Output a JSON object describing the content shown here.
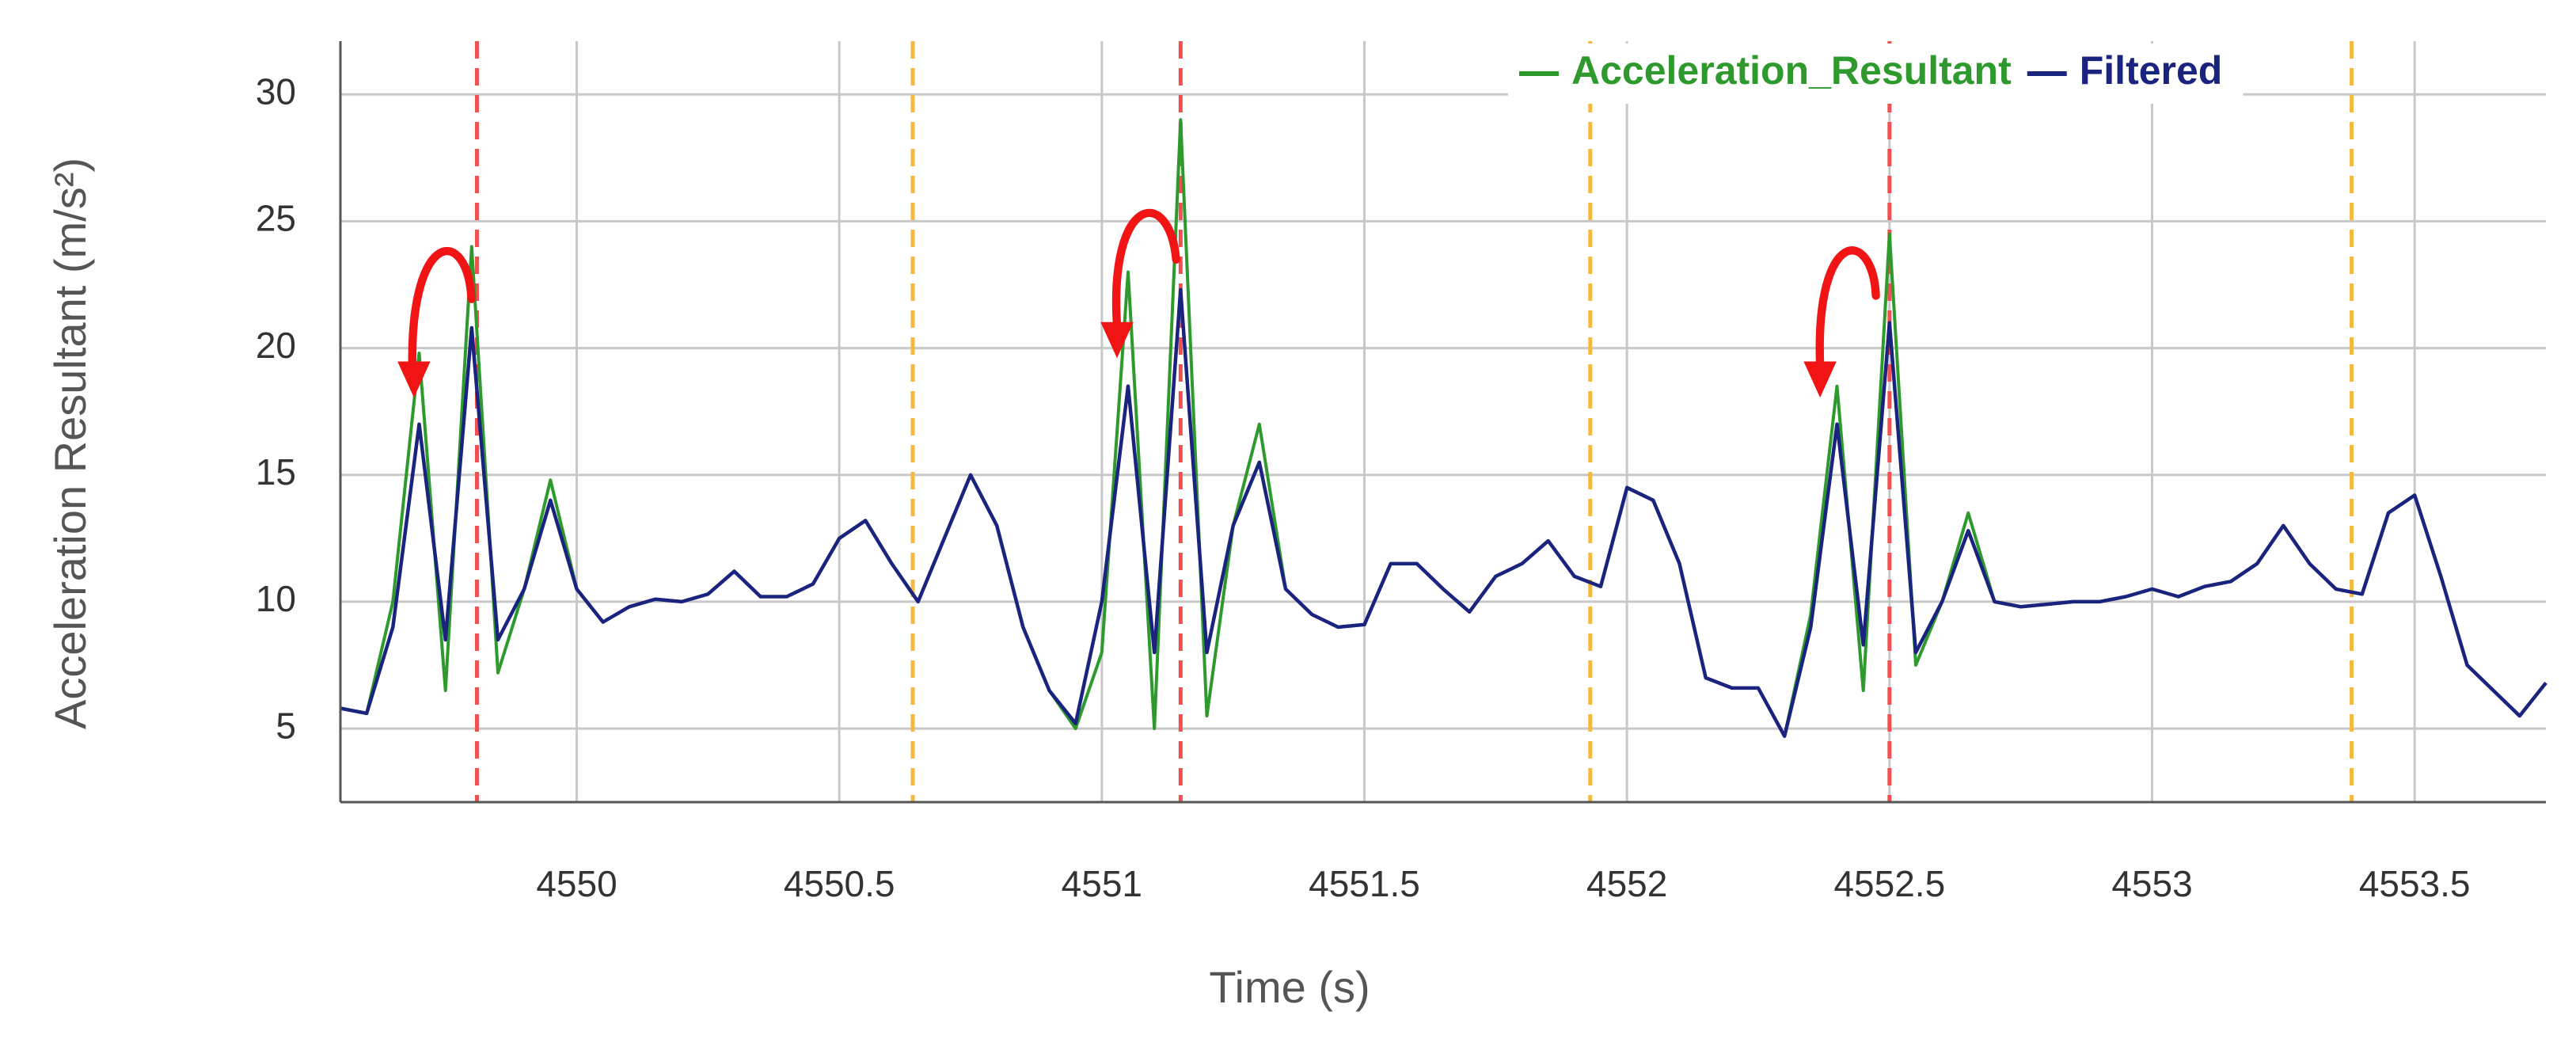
{
  "chart_data": {
    "type": "line",
    "x_label": "Time (s)",
    "y_label": "Acceleration Resultant (m/s²)",
    "x": [
      4549.55,
      4549.6,
      4549.65,
      4549.7,
      4549.75,
      4549.8,
      4549.85,
      4549.9,
      4549.95,
      4550,
      4550.05,
      4550.1,
      4550.15,
      4550.2,
      4550.25,
      4550.3,
      4550.35,
      4550.4,
      4550.45,
      4550.5,
      4550.55,
      4550.6,
      4550.65,
      4550.7,
      4550.75,
      4550.8,
      4550.85,
      4550.9,
      4550.95,
      4551,
      4551.05,
      4551.1,
      4551.15,
      4551.2,
      4551.25,
      4551.3,
      4551.35,
      4551.4,
      4551.45,
      4551.5,
      4551.55,
      4551.6,
      4551.65,
      4551.7,
      4551.75,
      4551.8,
      4551.85,
      4551.9,
      4551.95,
      4552,
      4552.05,
      4552.1,
      4552.15,
      4552.2,
      4552.25,
      4552.3,
      4552.35,
      4552.4,
      4552.45,
      4552.5,
      4552.55,
      4552.6,
      4552.65,
      4552.7,
      4552.75,
      4552.8,
      4552.85,
      4552.9,
      4552.95,
      4553,
      4553.05,
      4553.1,
      4553.15,
      4553.2,
      4553.25,
      4553.3,
      4553.35,
      4553.4,
      4553.45,
      4553.5,
      4553.55,
      4553.6,
      4553.65,
      4553.7,
      4553.75
    ],
    "series": [
      {
        "name": "Acceleration_Resultant",
        "color": "#2e9a2e",
        "values": [
          5.8,
          5.6,
          10,
          19.8,
          6.5,
          24,
          7.2,
          10.5,
          14.8,
          10.5,
          9.2,
          9.8,
          10.1,
          10,
          10.3,
          11.2,
          10.2,
          10.2,
          10.7,
          12.5,
          13.2,
          11.5,
          10,
          12.5,
          15,
          13,
          9,
          6.5,
          5,
          8,
          23,
          5,
          29,
          5.5,
          13,
          17,
          10.5,
          9.5,
          9,
          9.1,
          11.5,
          11.5,
          10.5,
          9.6,
          11,
          11.5,
          12.4,
          11,
          10.6,
          14.5,
          14,
          11.5,
          7,
          6.6,
          6.6,
          4.7,
          9.5,
          18.5,
          6.5,
          24.5,
          7.5,
          10,
          13.5,
          10,
          9.8,
          9.9,
          10,
          10,
          10.2,
          10.5,
          10.2,
          10.6,
          10.8,
          11.5,
          13,
          11.5,
          10.5,
          10.3,
          13.5,
          14.2,
          11,
          7.5,
          6.5,
          5.5,
          6.8
        ]
      },
      {
        "name": "Filtered",
        "color": "#1a237e",
        "values": [
          5.8,
          5.6,
          9,
          17,
          8.5,
          20.8,
          8.5,
          10.5,
          14,
          10.5,
          9.2,
          9.8,
          10.1,
          10,
          10.3,
          11.2,
          10.2,
          10.2,
          10.7,
          12.5,
          13.2,
          11.5,
          10,
          12.5,
          15,
          13,
          9,
          6.5,
          5.2,
          10,
          18.5,
          8,
          22.3,
          8,
          13,
          15.5,
          10.5,
          9.5,
          9,
          9.1,
          11.5,
          11.5,
          10.5,
          9.6,
          11,
          11.5,
          12.4,
          11,
          10.6,
          14.5,
          14,
          11.5,
          7,
          6.6,
          6.6,
          4.7,
          9,
          17,
          8.3,
          21,
          8,
          10,
          12.8,
          10,
          9.8,
          9.9,
          10,
          10,
          10.2,
          10.5,
          10.2,
          10.6,
          10.8,
          11.5,
          13,
          11.5,
          10.5,
          10.3,
          13.5,
          14.2,
          11,
          7.5,
          6.5,
          5.5,
          6.8
        ]
      }
    ],
    "reference_lines": [
      {
        "x": 4549.81,
        "color": "#f05050"
      },
      {
        "x": 4551.15,
        "color": "#f05050"
      },
      {
        "x": 4552.5,
        "color": "#f05050"
      },
      {
        "x": 4550.64,
        "color": "#f5b942"
      },
      {
        "x": 4551.93,
        "color": "#f5b942"
      },
      {
        "x": 4553.38,
        "color": "#f5b942"
      }
    ],
    "xlim": [
      4549.55,
      4553.75
    ],
    "ylim": [
      2.1,
      32.1
    ],
    "xticks": [
      4550,
      4550.5,
      4551,
      4551.5,
      4552,
      4552.5,
      4553,
      4553.5
    ],
    "yticks": [
      5,
      10,
      15,
      20,
      25,
      30
    ],
    "grid": true,
    "legend": "top-right"
  }
}
